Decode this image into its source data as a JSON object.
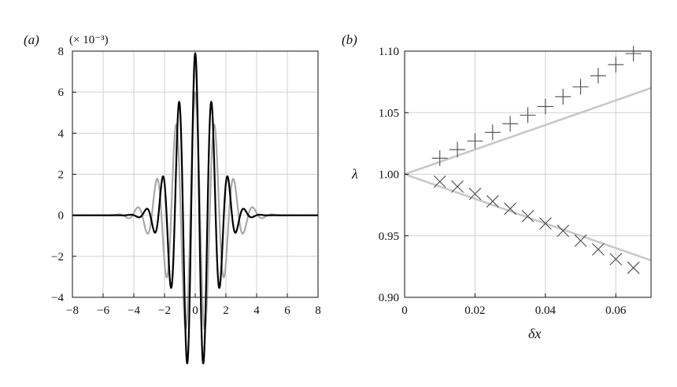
{
  "colors": {
    "frame": "#111111",
    "grid": "#d0d0d0",
    "black_curve": "#000000",
    "grey_curve": "#a8a8a8",
    "marker": "#4a4a4a",
    "line": "#c8c8c8"
  },
  "chart_data": [
    {
      "panel_label": "(a)",
      "type": "line",
      "y_multiplier": "(× 10⁻³)",
      "xlim": [
        -8,
        8
      ],
      "ylim": [
        -4,
        8
      ],
      "xticks": [
        -8,
        -6,
        -4,
        -2,
        0,
        2,
        4,
        6,
        8
      ],
      "yticks": [
        -4,
        -2,
        0,
        2,
        4,
        6,
        8
      ],
      "xtick_labels": [
        "−8",
        "−6",
        "−4",
        "−2",
        "0",
        "2",
        "4",
        "6",
        "8"
      ],
      "ytick_labels": [
        "−4",
        "−2",
        "0",
        "2",
        "4",
        "6",
        "8"
      ],
      "grid": true,
      "series": [
        {
          "color": "#a8a8a8",
          "width": 2.2,
          "peak": 6.0,
          "sigma": 1.6,
          "k": 5.0
        },
        {
          "color": "#000000",
          "width": 2.2,
          "peak": 7.9,
          "sigma": 1.25,
          "k": 5.9
        }
      ]
    },
    {
      "panel_label": "(b)",
      "type": "scatter",
      "xlabel": "δx",
      "ylabel": "λ",
      "xlim": [
        0,
        0.07
      ],
      "ylim": [
        0.9,
        1.1
      ],
      "xticks": [
        0,
        0.02,
        0.04,
        0.06
      ],
      "yticks": [
        0.9,
        0.95,
        1.0,
        1.05,
        1.1
      ],
      "xtick_labels": [
        "0",
        "0.02",
        "0.04",
        "0.06"
      ],
      "ytick_labels": [
        "0.90",
        "0.95",
        "1.00",
        "1.05",
        "1.10"
      ],
      "grid": true,
      "lines": [
        {
          "x": [
            0,
            0.07
          ],
          "y": [
            1.0,
            1.07
          ]
        },
        {
          "x": [
            0,
            0.07
          ],
          "y": [
            1.0,
            0.93
          ]
        }
      ],
      "plus_series": {
        "marker": "+",
        "x": [
          0.01,
          0.015,
          0.02,
          0.025,
          0.03,
          0.035,
          0.04,
          0.045,
          0.05,
          0.055,
          0.06,
          0.065
        ],
        "y": [
          1.013,
          1.02,
          1.027,
          1.034,
          1.041,
          1.048,
          1.055,
          1.063,
          1.071,
          1.08,
          1.089,
          1.098
        ]
      },
      "cross_series": {
        "marker": "x",
        "x": [
          0.01,
          0.015,
          0.02,
          0.025,
          0.03,
          0.035,
          0.04,
          0.045,
          0.05,
          0.055,
          0.06,
          0.065
        ],
        "y": [
          0.994,
          0.99,
          0.984,
          0.978,
          0.972,
          0.966,
          0.96,
          0.954,
          0.946,
          0.939,
          0.931,
          0.924
        ]
      }
    }
  ]
}
